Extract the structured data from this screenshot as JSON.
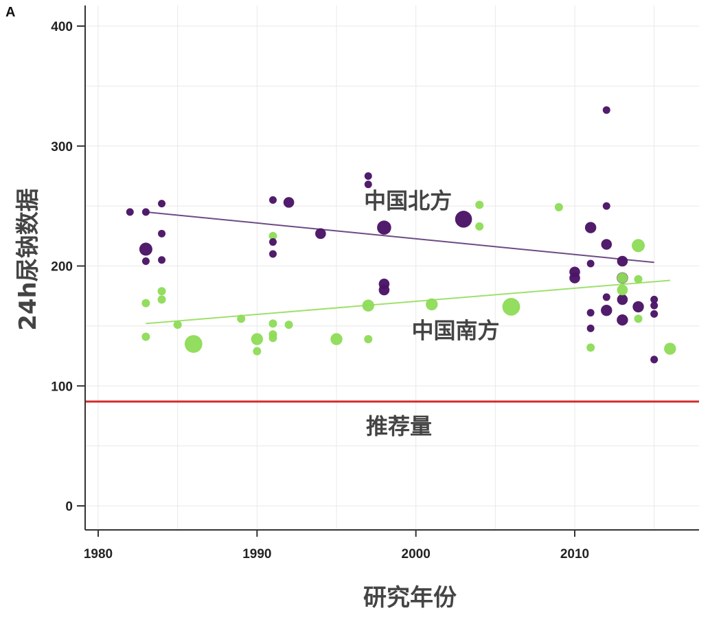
{
  "chart_data": {
    "type": "scatter",
    "panel_label": "A",
    "xlabel": "研究年份",
    "ylabel": "24h尿钠数据",
    "xlim": [
      1979,
      2017.5
    ],
    "ylim": [
      -20,
      420
    ],
    "xticks": [
      1980,
      1990,
      2000,
      2010
    ],
    "yticks": [
      0,
      100,
      200,
      300,
      400
    ],
    "grid": true,
    "colors": {
      "north": "#4b1566",
      "south": "#8fdc5a",
      "reference": "#d42a2a",
      "north_line": "#6d4a85",
      "south_line": "#9ee06c"
    },
    "series": [
      {
        "name": "中国北方",
        "color": "#4b1566",
        "points": [
          {
            "x": 1982,
            "y": 245,
            "size": 1
          },
          {
            "x": 1983,
            "y": 245,
            "size": 1
          },
          {
            "x": 1983,
            "y": 214,
            "size": 3
          },
          {
            "x": 1983,
            "y": 204,
            "size": 1
          },
          {
            "x": 1984,
            "y": 252,
            "size": 1
          },
          {
            "x": 1984,
            "y": 227,
            "size": 1
          },
          {
            "x": 1984,
            "y": 205,
            "size": 1
          },
          {
            "x": 1991,
            "y": 255,
            "size": 1
          },
          {
            "x": 1991,
            "y": 220,
            "size": 1
          },
          {
            "x": 1991,
            "y": 210,
            "size": 1
          },
          {
            "x": 1992,
            "y": 253,
            "size": 2
          },
          {
            "x": 1994,
            "y": 227,
            "size": 2
          },
          {
            "x": 1997,
            "y": 275,
            "size": 1
          },
          {
            "x": 1997,
            "y": 268,
            "size": 1
          },
          {
            "x": 1998,
            "y": 232,
            "size": 3.5
          },
          {
            "x": 1998,
            "y": 185,
            "size": 2
          },
          {
            "x": 1998,
            "y": 180,
            "size": 2
          },
          {
            "x": 2003,
            "y": 239,
            "size": 4.5
          },
          {
            "x": 2010,
            "y": 195,
            "size": 2
          },
          {
            "x": 2010,
            "y": 190,
            "size": 2
          },
          {
            "x": 2011,
            "y": 232,
            "size": 2.2
          },
          {
            "x": 2011,
            "y": 202,
            "size": 1
          },
          {
            "x": 2011,
            "y": 161,
            "size": 1
          },
          {
            "x": 2011,
            "y": 148,
            "size": 1
          },
          {
            "x": 2012,
            "y": 330,
            "size": 1
          },
          {
            "x": 2012,
            "y": 250,
            "size": 1
          },
          {
            "x": 2012,
            "y": 218,
            "size": 2
          },
          {
            "x": 2012,
            "y": 174,
            "size": 1
          },
          {
            "x": 2012,
            "y": 163,
            "size": 2.2
          },
          {
            "x": 2013,
            "y": 204,
            "size": 2
          },
          {
            "x": 2013,
            "y": 190,
            "size": 2.2
          },
          {
            "x": 2013,
            "y": 172,
            "size": 2
          },
          {
            "x": 2013,
            "y": 155,
            "size": 2.2
          },
          {
            "x": 2014,
            "y": 166,
            "size": 2.2
          },
          {
            "x": 2015,
            "y": 172,
            "size": 1
          },
          {
            "x": 2015,
            "y": 167,
            "size": 1
          },
          {
            "x": 2015,
            "y": 160,
            "size": 1
          },
          {
            "x": 2015,
            "y": 122,
            "size": 1
          }
        ],
        "trend": {
          "x": [
            1983,
            2015
          ],
          "y": [
            245,
            203
          ]
        }
      },
      {
        "name": "中国南方",
        "color": "#8fdc5a",
        "points": [
          {
            "x": 1983,
            "y": 169,
            "size": 1.2
          },
          {
            "x": 1983,
            "y": 141,
            "size": 1.2
          },
          {
            "x": 1984,
            "y": 179,
            "size": 1.2
          },
          {
            "x": 1984,
            "y": 172,
            "size": 1.2
          },
          {
            "x": 1985,
            "y": 151,
            "size": 1.2
          },
          {
            "x": 1986,
            "y": 135,
            "size": 5
          },
          {
            "x": 1989,
            "y": 156,
            "size": 1.2
          },
          {
            "x": 1990,
            "y": 139,
            "size": 2.5
          },
          {
            "x": 1990,
            "y": 129,
            "size": 1.2
          },
          {
            "x": 1991,
            "y": 225,
            "size": 1.2
          },
          {
            "x": 1991,
            "y": 152,
            "size": 1.2
          },
          {
            "x": 1991,
            "y": 143,
            "size": 1.2
          },
          {
            "x": 1991,
            "y": 140,
            "size": 1.2
          },
          {
            "x": 1992,
            "y": 151,
            "size": 1.2
          },
          {
            "x": 1995,
            "y": 139,
            "size": 2.5
          },
          {
            "x": 1997,
            "y": 167,
            "size": 2.5
          },
          {
            "x": 1997,
            "y": 139,
            "size": 1.2
          },
          {
            "x": 2001,
            "y": 168,
            "size": 2.5
          },
          {
            "x": 2004,
            "y": 251,
            "size": 1.2
          },
          {
            "x": 2004,
            "y": 233,
            "size": 1.2
          },
          {
            "x": 2006,
            "y": 166,
            "size": 5
          },
          {
            "x": 2009,
            "y": 249,
            "size": 1.2
          },
          {
            "x": 2011,
            "y": 132,
            "size": 1.2
          },
          {
            "x": 2013,
            "y": 190,
            "size": 2
          },
          {
            "x": 2013,
            "y": 180,
            "size": 2
          },
          {
            "x": 2014,
            "y": 217,
            "size": 3
          },
          {
            "x": 2014,
            "y": 189,
            "size": 1.2
          },
          {
            "x": 2014,
            "y": 156,
            "size": 1.2
          },
          {
            "x": 2016,
            "y": 131,
            "size": 2.5
          }
        ],
        "trend": {
          "x": [
            1983,
            2016
          ],
          "y": [
            152,
            188
          ]
        }
      }
    ],
    "reference_line": {
      "y": 87,
      "label": "推荐量",
      "color": "#d42a2a"
    },
    "annotations": [
      {
        "text": "中国北方",
        "x": 1999.5,
        "y": 248
      },
      {
        "text": "中国南方",
        "x": 2002.5,
        "y": 140
      }
    ]
  }
}
